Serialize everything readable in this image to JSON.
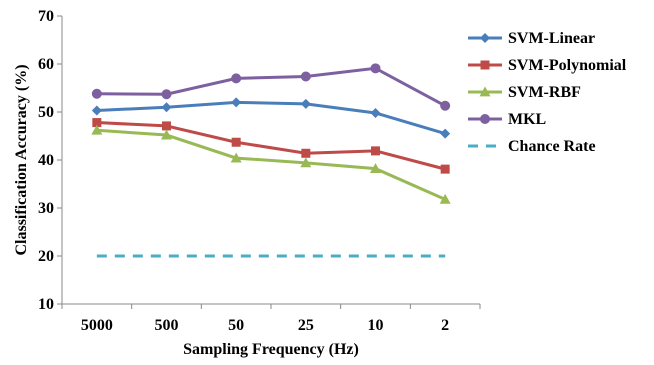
{
  "chart_data": {
    "type": "line",
    "title": "",
    "xlabel": "Sampling Frequency (Hz)",
    "ylabel": "Classification Accuracy (%)",
    "categories": [
      "5000",
      "500",
      "50",
      "25",
      "10",
      "2"
    ],
    "ylim": [
      10,
      70
    ],
    "yticks": [
      10,
      20,
      30,
      40,
      50,
      60,
      70
    ],
    "grid": false,
    "legend_position": "right",
    "series": [
      {
        "name": "SVM-Linear",
        "color": "#4a7ebb",
        "marker": "diamond",
        "values": [
          50.3,
          51.0,
          52.0,
          51.7,
          49.8,
          45.5
        ]
      },
      {
        "name": "SVM-Polynomial",
        "color": "#be4b48",
        "marker": "square",
        "values": [
          47.8,
          47.1,
          43.7,
          41.4,
          41.9,
          38.1
        ]
      },
      {
        "name": "SVM-RBF",
        "color": "#98b954",
        "marker": "triangle",
        "values": [
          46.2,
          45.2,
          40.4,
          39.4,
          38.2,
          31.8
        ]
      },
      {
        "name": "MKL",
        "color": "#7d60a0",
        "marker": "circle",
        "values": [
          53.8,
          53.7,
          57.0,
          57.4,
          59.1,
          51.3
        ]
      },
      {
        "name": "Chance Rate",
        "color": "#4bacc6",
        "marker": "none",
        "dashed": true,
        "values": [
          20,
          20,
          20,
          20,
          20,
          20
        ]
      }
    ]
  }
}
